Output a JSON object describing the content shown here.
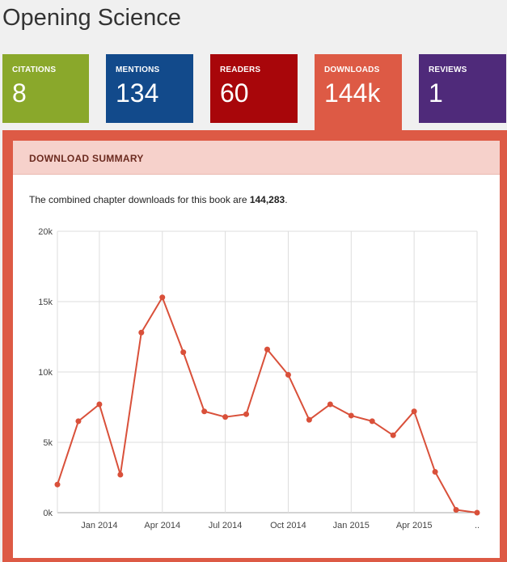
{
  "page": {
    "title": "Opening Science"
  },
  "tiles": [
    {
      "label": "CITATIONS",
      "value": "8"
    },
    {
      "label": "MENTIONS",
      "value": "134"
    },
    {
      "label": "READERS",
      "value": "60"
    },
    {
      "label": "DOWNLOADS",
      "value": "144k"
    },
    {
      "label": "REVIEWS",
      "value": "1"
    }
  ],
  "summary": {
    "heading": "DOWNLOAD SUMMARY",
    "text_before": "The combined chapter downloads for this book are ",
    "total": "144,283",
    "text_after": "."
  },
  "colors": {
    "accent": "#dd5a45",
    "line": "#d9503a"
  },
  "chart_data": {
    "type": "line",
    "title": "",
    "xlabel": "",
    "ylabel": "",
    "ylim": [
      0,
      20000
    ],
    "y_ticks": [
      "0k",
      "5k",
      "10k",
      "15k",
      "20k"
    ],
    "x_ticks": [
      "Jan 2014",
      "Apr 2014",
      "Jul 2014",
      "Oct 2014",
      "Jan 2015",
      "Apr 2015",
      ".."
    ],
    "grid": true,
    "x": [
      "2013-11",
      "2013-12",
      "2014-01",
      "2014-02",
      "2014-03",
      "2014-04",
      "2014-05",
      "2014-06",
      "2014-07",
      "2014-08",
      "2014-09",
      "2014-10",
      "2014-11",
      "2014-12",
      "2015-01",
      "2015-02",
      "2015-03",
      "2015-04",
      "2015-05",
      "2015-06",
      "2015-07"
    ],
    "values": [
      2000,
      6500,
      7700,
      2700,
      12800,
      15300,
      11400,
      7200,
      6800,
      7000,
      11600,
      9800,
      6600,
      7700,
      6900,
      6500,
      5500,
      7200,
      2900,
      200,
      0
    ]
  }
}
